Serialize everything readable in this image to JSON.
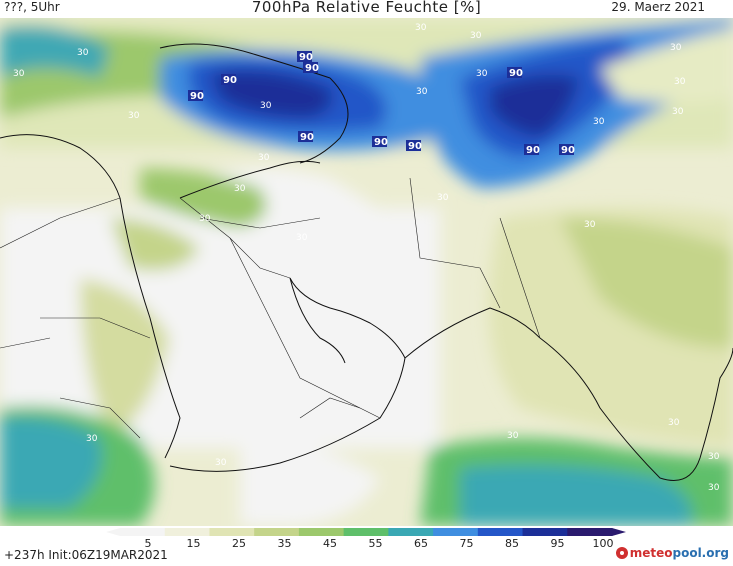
{
  "header": {
    "left": "???, 5Uhr",
    "title": "700hPa Relative Feuchte [%]",
    "right": "29. Maerz 2021"
  },
  "footer": {
    "init": "+237h Init:06Z19MAR2021",
    "logo_meteo": "meteo",
    "logo_org": "pool.org"
  },
  "legend": {
    "ticks": [
      "5",
      "15",
      "25",
      "35",
      "45",
      "55",
      "65",
      "75",
      "85",
      "95",
      "100"
    ],
    "colors": [
      "#f4f4f4",
      "#f0f0dc",
      "#e0e4b4",
      "#c4d48a",
      "#9cc86c",
      "#5fbf6a",
      "#3aa8b4",
      "#3f8ee0",
      "#2456c8",
      "#1c2f98",
      "#2a1a6e"
    ]
  },
  "map": {
    "labels_90": [
      "90",
      "90",
      "90",
      "90",
      "90",
      "90",
      "90",
      "90",
      "90",
      "90"
    ],
    "labels_30": [
      "30",
      "30",
      "30",
      "30",
      "30",
      "30",
      "30",
      "30",
      "30",
      "30",
      "30",
      "30",
      "30",
      "30",
      "30",
      "30",
      "30",
      "30",
      "30",
      "30",
      "30",
      "30",
      "30",
      "30"
    ]
  }
}
